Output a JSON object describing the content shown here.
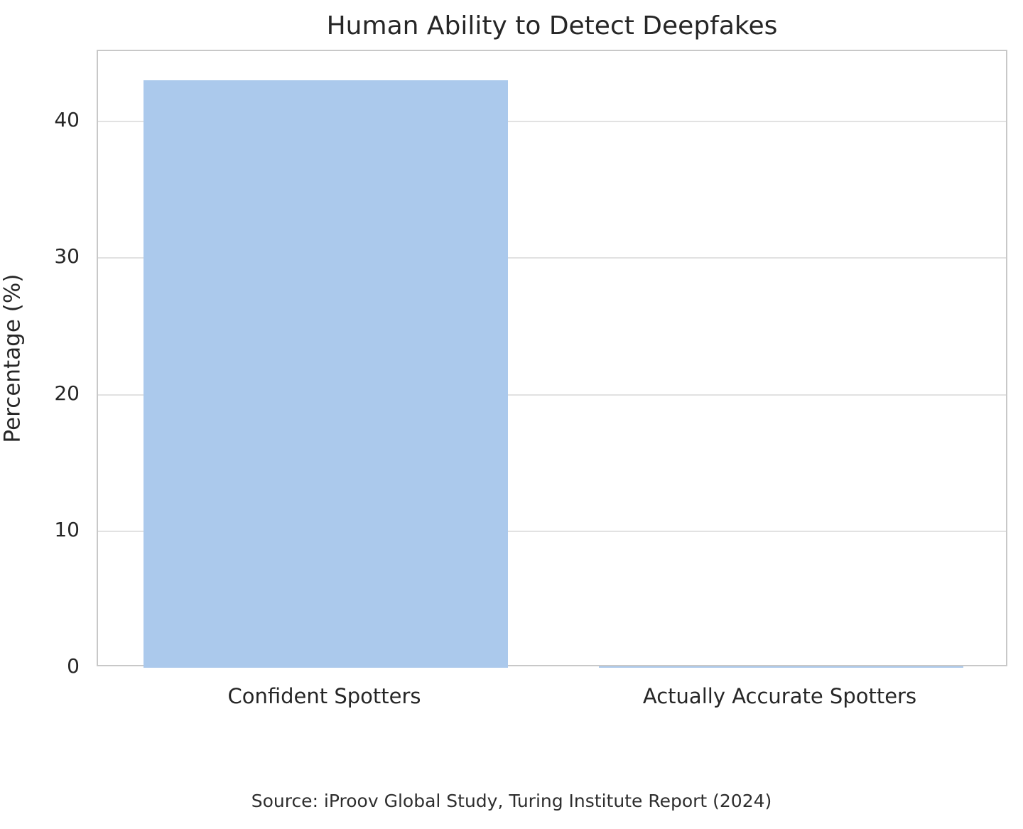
{
  "chart_data": {
    "type": "bar",
    "title": "Human Ability to Detect Deepfakes",
    "categories": [
      "Confident Spotters",
      "Actually Accurate Spotters"
    ],
    "values": [
      43,
      0.1
    ],
    "xlabel": "",
    "ylabel": "Percentage (%)",
    "yticks": [
      0,
      10,
      20,
      30,
      40
    ],
    "ylim": [
      0,
      45.15
    ],
    "grid": "horizontal",
    "legend_position": "none",
    "bar_width_fraction": 0.8,
    "source_note": "Source: iProov Global Study, Turing Institute Report (2024)"
  },
  "colors": {
    "bar": "#abc9ec",
    "grid": "#e2e2e2",
    "spine": "#c8c8c8",
    "text": "#262626",
    "background": "#ffffff"
  }
}
